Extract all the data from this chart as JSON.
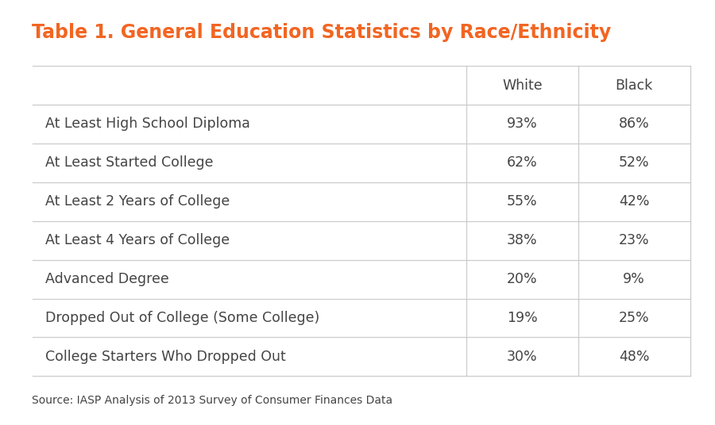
{
  "title": "Table 1. General Education Statistics by Race/Ethnicity",
  "title_color": "#F26522",
  "title_fontsize": 17,
  "columns": [
    "",
    "White",
    "Black"
  ],
  "rows": [
    [
      "At Least High School Diploma",
      "93%",
      "86%"
    ],
    [
      "At Least Started College",
      "62%",
      "52%"
    ],
    [
      "At Least 2 Years of College",
      "55%",
      "42%"
    ],
    [
      "At Least 4 Years of College",
      "38%",
      "23%"
    ],
    [
      "Advanced Degree",
      "20%",
      "9%"
    ],
    [
      "Dropped Out of College (Some College)",
      "19%",
      "25%"
    ],
    [
      "College Starters Who Dropped Out",
      "30%",
      "48%"
    ]
  ],
  "source": "Source: IASP Analysis of 2013 Survey of Consumer Finances Data",
  "background_color": "#FFFFFF",
  "line_color": "#CCCCCC",
  "text_color": "#444444",
  "cell_fontsize": 12.5,
  "header_fontsize": 12.5,
  "source_fontsize": 10
}
